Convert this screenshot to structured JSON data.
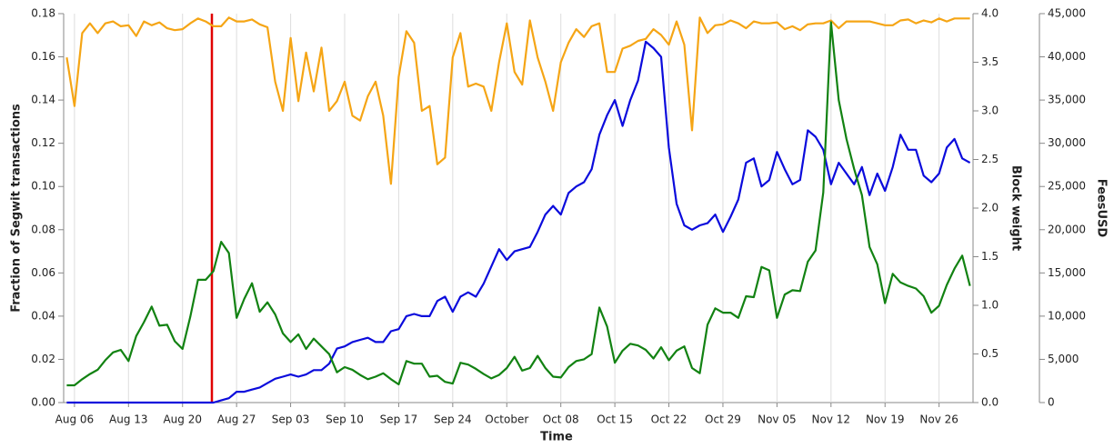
{
  "chart_data": {
    "type": "line",
    "xlabel": "Time",
    "ylabel": "Fraction of Segwit transactions",
    "y2label": "Block weight",
    "y3label": "FeesUSD",
    "grid": "x",
    "categories": [
      null,
      "Aug 06",
      null,
      null,
      null,
      null,
      null,
      null,
      "Aug 13",
      null,
      null,
      null,
      null,
      null,
      null,
      "Aug 20",
      null,
      null,
      null,
      null,
      null,
      null,
      "Aug 27",
      null,
      null,
      null,
      null,
      null,
      null,
      "Sep 03",
      null,
      null,
      null,
      null,
      null,
      null,
      "Sep 10",
      null,
      null,
      null,
      null,
      null,
      null,
      "Sep 17",
      null,
      null,
      null,
      null,
      null,
      null,
      "Sep 24",
      null,
      null,
      null,
      null,
      null,
      null,
      "October",
      null,
      null,
      null,
      null,
      null,
      null,
      "Oct 08",
      null,
      null,
      null,
      null,
      null,
      null,
      "Oct 15",
      null,
      null,
      null,
      null,
      null,
      null,
      "Oct 22",
      null,
      null,
      null,
      null,
      null,
      null,
      "Oct 29",
      null,
      null,
      null,
      null,
      null,
      null,
      "Nov 05",
      null,
      null,
      null,
      null,
      null,
      null,
      "Nov 12",
      null,
      null,
      null,
      null,
      null,
      null,
      "Nov 19",
      null,
      null,
      null,
      null,
      null,
      null,
      "Nov 26",
      null,
      null,
      null,
      null
    ],
    "ylim": [
      0,
      0.18
    ],
    "yticks": [
      {
        "value": 0,
        "label": "0.00"
      },
      {
        "value": 0.02,
        "label": "0.02"
      },
      {
        "value": 0.04,
        "label": "0.04"
      },
      {
        "value": 0.06,
        "label": "0.06"
      },
      {
        "value": 0.08,
        "label": "0.08"
      },
      {
        "value": 0.1,
        "label": "0.10"
      },
      {
        "value": 0.12,
        "label": "0.12"
      },
      {
        "value": 0.14,
        "label": "0.14"
      },
      {
        "value": 0.16,
        "label": "0.16"
      },
      {
        "value": 0.18,
        "label": "0.18"
      }
    ],
    "y2lim": [
      0,
      4
    ],
    "y2ticks": [
      {
        "value": 0,
        "label": "0.0"
      },
      0.5,
      {
        "value": 1,
        "label": "1.0"
      },
      1.5,
      {
        "value": 2,
        "label": "2.0"
      },
      2.5,
      {
        "value": 3,
        "label": "3.0"
      },
      3.5,
      {
        "value": 4,
        "label": "4.0"
      }
    ],
    "y3lim": [
      0,
      45000
    ],
    "y3ticks": [
      0,
      {
        "value": 5000,
        "label": "5,000"
      },
      {
        "value": 10000,
        "label": "10,000"
      },
      {
        "value": 15000,
        "label": "15,000"
      },
      {
        "value": 20000,
        "label": "20,000"
      },
      {
        "value": 25000,
        "label": "25,000"
      },
      {
        "value": 30000,
        "label": "30,000"
      },
      {
        "value": 35000,
        "label": "35,000"
      },
      {
        "value": 40000,
        "label": "40,000"
      },
      {
        "value": 45000,
        "label": "45,000"
      }
    ],
    "series": [
      {
        "color": "#0b0bdc",
        "axis": "y",
        "values": [
          0,
          0,
          0,
          0,
          0,
          0,
          0,
          0,
          0,
          0,
          0,
          0,
          0,
          0,
          0,
          0,
          0,
          0,
          0,
          0,
          0.001,
          0.002,
          0.005,
          0.005,
          0.006,
          0.007,
          0.009,
          0.011,
          0.012,
          0.013,
          0.012,
          0.013,
          0.015,
          0.015,
          0.018,
          0.025,
          0.026,
          0.028,
          0.029,
          0.03,
          0.028,
          0.028,
          0.033,
          0.034,
          0.04,
          0.041,
          0.04,
          0.04,
          0.047,
          0.049,
          0.042,
          0.049,
          0.051,
          0.049,
          0.055,
          0.063,
          0.071,
          0.066,
          0.07,
          0.071,
          0.072,
          0.079,
          0.087,
          0.091,
          0.087,
          0.097,
          0.1,
          0.102,
          0.108,
          0.124,
          0.133,
          0.14,
          0.128,
          0.14,
          0.149,
          0.167,
          0.164,
          0.16,
          0.118,
          0.092,
          0.082,
          0.08,
          0.082,
          0.083,
          0.087,
          0.079,
          0.086,
          0.094,
          0.111,
          0.113,
          0.1,
          0.103,
          0.116,
          0.108,
          0.101,
          0.103,
          0.126,
          0.123,
          0.117,
          0.101,
          0.111,
          0.106,
          0.101,
          0.109,
          0.096,
          0.106,
          0.098,
          0.109,
          0.124,
          0.117,
          0.117,
          0.105,
          0.102,
          0.106,
          0.118,
          0.122,
          0.113,
          0.111
        ]
      },
      {
        "color": "#f5a515",
        "axis": "y2",
        "values": [
          3.55,
          3.05,
          3.8,
          3.9,
          3.8,
          3.9,
          3.92,
          3.87,
          3.88,
          3.77,
          3.92,
          3.88,
          3.91,
          3.85,
          3.83,
          3.84,
          3.9,
          3.95,
          3.92,
          3.87,
          3.87,
          3.96,
          3.92,
          3.92,
          3.94,
          3.89,
          3.86,
          3.3,
          3.0,
          3.75,
          3.1,
          3.6,
          3.2,
          3.65,
          3.0,
          3.1,
          3.3,
          2.95,
          2.9,
          3.15,
          3.3,
          2.95,
          2.25,
          3.35,
          3.82,
          3.7,
          3.0,
          3.05,
          2.45,
          2.52,
          3.55,
          3.8,
          3.25,
          3.28,
          3.25,
          3.0,
          3.5,
          3.9,
          3.4,
          3.27,
          3.93,
          3.55,
          3.3,
          3.0,
          3.5,
          3.7,
          3.84,
          3.76,
          3.87,
          3.9,
          3.4,
          3.4,
          3.64,
          3.67,
          3.72,
          3.74,
          3.84,
          3.78,
          3.68,
          3.92,
          3.68,
          2.8,
          3.96,
          3.8,
          3.88,
          3.89,
          3.93,
          3.9,
          3.85,
          3.92,
          3.9,
          3.9,
          3.91,
          3.84,
          3.87,
          3.83,
          3.89,
          3.9,
          3.9,
          3.93,
          3.85,
          3.92,
          3.92,
          3.92,
          3.92,
          3.9,
          3.88,
          3.88,
          3.93,
          3.94,
          3.9,
          3.93,
          3.91,
          3.95,
          3.92,
          3.95,
          3.95,
          3.95
        ]
      },
      {
        "color": "#128212",
        "axis": "y3",
        "values": [
          2000,
          2000,
          2700,
          3300,
          3800,
          4900,
          5800,
          6100,
          4800,
          7700,
          9300,
          11100,
          8900,
          9000,
          7100,
          6200,
          9900,
          14200,
          14200,
          15200,
          18600,
          17300,
          9800,
          12000,
          13800,
          10500,
          11600,
          10200,
          8000,
          7000,
          7900,
          6200,
          7400,
          6500,
          5600,
          3500,
          4100,
          3800,
          3200,
          2700,
          3000,
          3400,
          2700,
          2100,
          4800,
          4500,
          4500,
          3000,
          3100,
          2400,
          2200,
          4600,
          4400,
          3900,
          3300,
          2800,
          3200,
          4000,
          5300,
          3700,
          4000,
          5400,
          4000,
          3000,
          2900,
          4100,
          4800,
          5000,
          5600,
          11000,
          8800,
          4600,
          6000,
          6800,
          6600,
          6100,
          5100,
          6400,
          4900,
          6000,
          6500,
          4000,
          3400,
          9000,
          10900,
          10400,
          10400,
          9800,
          12300,
          12200,
          15700,
          15300,
          9800,
          12500,
          13000,
          12900,
          16300,
          17600,
          24300,
          44000,
          35000,
          30500,
          27000,
          24000,
          18000,
          16000,
          11500,
          14900,
          13900,
          13500,
          13200,
          12300,
          10400,
          11200,
          13600,
          15500,
          17000,
          13500
        ]
      }
    ]
  }
}
